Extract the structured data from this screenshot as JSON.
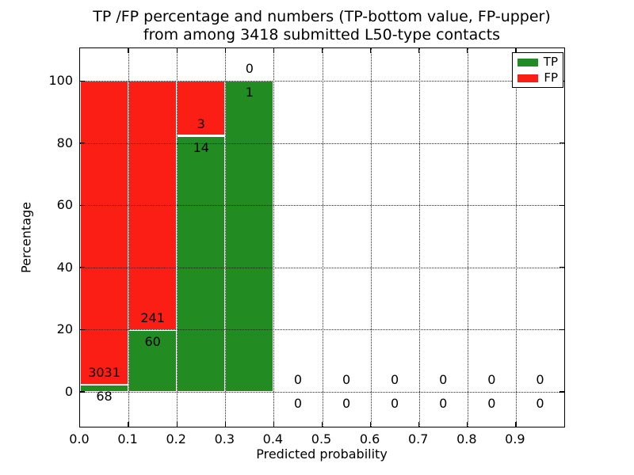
{
  "title": {
    "line1": "TP /FP percentage and numbers (TP-bottom value, FP-upper)",
    "line2": "from among 3418 submitted L50-type contacts"
  },
  "chart_data": {
    "type": "bar",
    "stacked": true,
    "title": "TP /FP percentage and numbers (TP-bottom value, FP-upper) from among 3418 submitted L50-type contacts",
    "xlabel": "Predicted probability",
    "ylabel": "Percentage",
    "xlim": [
      0.0,
      1.0
    ],
    "ylim": [
      -11,
      110.5
    ],
    "x_ticks": [
      0.0,
      0.1,
      0.2,
      0.3,
      0.4,
      0.5,
      0.6,
      0.7,
      0.8,
      0.9
    ],
    "x_tick_labels": [
      "0.0",
      "0.1",
      "0.2",
      "0.3",
      "0.4",
      "0.5",
      "0.6",
      "0.7",
      "0.8",
      "0.9"
    ],
    "y_ticks": [
      0,
      20,
      40,
      60,
      80,
      100
    ],
    "y_tick_labels": [
      "0",
      "20",
      "40",
      "60",
      "80",
      "100"
    ],
    "grid": "dotted, drawn over bars",
    "legend_position": "upper right",
    "total_contacts": 3418,
    "annotation_note": "TP count labeled below segment boundary, FP count labeled above segment boundary",
    "series": [
      {
        "name": "TP",
        "color": "#228b22"
      },
      {
        "name": "FP",
        "color": "#fa1e15"
      }
    ],
    "bins": [
      {
        "x0": 0.0,
        "x1": 0.1,
        "tp": 68,
        "fp": 3031
      },
      {
        "x0": 0.1,
        "x1": 0.2,
        "tp": 60,
        "fp": 241
      },
      {
        "x0": 0.2,
        "x1": 0.3,
        "tp": 14,
        "fp": 3
      },
      {
        "x0": 0.3,
        "x1": 0.4,
        "tp": 1,
        "fp": 0
      },
      {
        "x0": 0.4,
        "x1": 0.5,
        "tp": 0,
        "fp": 0
      },
      {
        "x0": 0.5,
        "x1": 0.6,
        "tp": 0,
        "fp": 0
      },
      {
        "x0": 0.6,
        "x1": 0.7,
        "tp": 0,
        "fp": 0
      },
      {
        "x0": 0.7,
        "x1": 0.8,
        "tp": 0,
        "fp": 0
      },
      {
        "x0": 0.8,
        "x1": 0.9,
        "tp": 0,
        "fp": 0
      },
      {
        "x0": 0.9,
        "x1": 1.0,
        "tp": 0,
        "fp": 0
      }
    ],
    "legend": [
      {
        "label": "TP",
        "color": "#228b22"
      },
      {
        "label": "FP",
        "color": "#fa1e15"
      }
    ]
  }
}
